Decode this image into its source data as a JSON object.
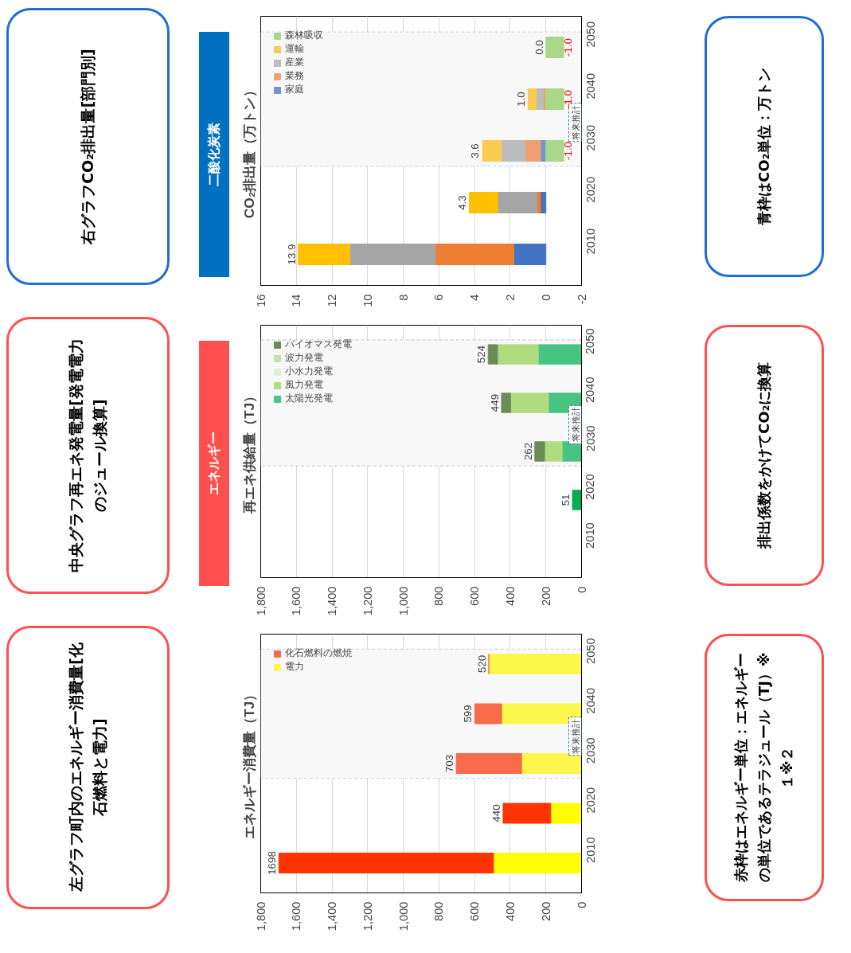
{
  "chart_data": [
    {
      "type": "bar",
      "title": "CO₂排出量（万トン）",
      "orientation": "horizontal",
      "stacked": true,
      "categories": [
        "2050",
        "2040",
        "2030",
        "2020",
        "2010"
      ],
      "series": [
        {
          "name": "家庭",
          "color": "#7094d4",
          "colors": [
            "#7094d4",
            "#7094d4",
            "#7094d4",
            "#4472c4",
            "#4472c4"
          ],
          "values": [
            null,
            null,
            0.3,
            0.3,
            1.8
          ]
        },
        {
          "name": "業務",
          "color": "#f0a070",
          "colors": [
            "#f0a070",
            "#f0a070",
            "#f0a070",
            "#ed7d31",
            "#ed7d31"
          ],
          "values": [
            null,
            0.15,
            0.85,
            0.2,
            4.4
          ]
        },
        {
          "name": "産業",
          "color": "#bcbcbc",
          "colors": [
            "#bcbcbc",
            "#bcbcbc",
            "#bcbcbc",
            "#a5a5a5",
            "#a5a5a5"
          ],
          "values": [
            null,
            0.4,
            1.35,
            2.2,
            4.8
          ]
        },
        {
          "name": "運輸",
          "color": "#f8cc50",
          "colors": [
            "#f8cc50",
            "#f8cc50",
            "#f8cc50",
            "#ffc000",
            "#ffc000"
          ],
          "values": [
            null,
            0.45,
            1.05,
            1.6,
            2.9
          ]
        },
        {
          "name": "森林吸収",
          "color": "#a9d88a",
          "values": [
            -1.0,
            -1.0,
            -1.0,
            null,
            null
          ],
          "value_labels": [
            "-1.0",
            "-1.0",
            "-1.0",
            null,
            null
          ]
        }
      ],
      "xlim": [
        16,
        -2
      ],
      "xticks": [
        16,
        14,
        12,
        10,
        8,
        6,
        4,
        2,
        0,
        -2
      ],
      "grid": "x",
      "legend": "top left",
      "bands": [
        {
          "axis": "y",
          "from": "2030",
          "to": "2050",
          "label": "将来推計",
          "color": "#f8f8f8"
        }
      ],
      "annotations": [
        "右グラフCO₂排出量[部門別]",
        "青枠はCO₂単位：万トン",
        "二酸化炭素",
        {
          "text": "0.0",
          "x": 0.0,
          "y": "2050"
        },
        {
          "text": "1.0",
          "x": 1.0,
          "y": "2040"
        },
        {
          "text": "3.6",
          "x": 3.6,
          "y": "2030"
        },
        {
          "text": "4.3",
          "x": 4.3,
          "y": "2020"
        },
        {
          "text": "13.9",
          "x": 13.9,
          "y": "2010"
        }
      ]
    },
    {
      "type": "bar",
      "title": "再エネ供給量（TJ）",
      "orientation": "horizontal",
      "stacked": true,
      "categories": [
        "2050",
        "2040",
        "2030",
        "2020",
        "2010"
      ],
      "series": [
        {
          "name": "太陽光発電",
          "color": "#48c482",
          "colors": [
            "#48c482",
            "#48c482",
            "#48c482",
            "#00b050",
            "#00b050"
          ],
          "values": [
            243,
            185,
            109,
            51,
            null
          ]
        },
        {
          "name": "風力発電",
          "color": "#b0dc80",
          "values": [
            228,
            212,
            98,
            null,
            null
          ]
        },
        {
          "name": "小水力発電",
          "color": "#e2efda",
          "values": [
            0,
            0,
            0,
            null,
            null
          ]
        },
        {
          "name": "波力発電",
          "color": "#c6e0b4",
          "values": [
            0,
            0,
            0,
            null,
            null
          ]
        },
        {
          "name": "バイオマス発電",
          "color": "#6b8c58",
          "values": [
            53,
            52,
            55,
            null,
            null
          ]
        }
      ],
      "totals": [
        "524",
        "449",
        "262",
        "51",
        null
      ],
      "xlim": [
        1800,
        0
      ],
      "xticks": [
        {
          "value": 1800,
          "label": "1,800"
        },
        {
          "value": 1600,
          "label": "1,600"
        },
        {
          "value": 1400,
          "label": "1,400"
        },
        {
          "value": 1200,
          "label": "1,200"
        },
        {
          "value": 1000,
          "label": "1,000"
        },
        800,
        600,
        400,
        200,
        0
      ],
      "grid": "x",
      "legend": "top left",
      "bands": [
        {
          "axis": "y",
          "from": "2030",
          "to": "2050",
          "label": "将来推計",
          "color": "#f8f8f8"
        }
      ],
      "annotations": [
        "中央グラフ再エネ発電量[発電電力のジュール換算]",
        "排出係数をかけてCO₂に換算",
        "エネルギー"
      ]
    },
    {
      "type": "bar",
      "title": "エネルギー消費量（TJ）",
      "orientation": "horizontal",
      "stacked": true,
      "categories": [
        "2050",
        "2040",
        "2030",
        "2020",
        "2010"
      ],
      "series": [
        {
          "name": "電力",
          "color": "#fbf84b",
          "colors": [
            "#fbf84b",
            "#fbf84b",
            "#fbf84b",
            "#ffff00",
            "#ffff00"
          ],
          "values": [
            520,
            448,
            336,
            173,
            494
          ]
        },
        {
          "name": "化石燃料の燃焼",
          "color": "#f96b4a",
          "colors": [
            "#f96b4a",
            "#f96b4a",
            "#f96b4a",
            "#ff3300",
            "#ff3300"
          ],
          "values": [
            0,
            151,
            367,
            267,
            1204
          ]
        }
      ],
      "totals": [
        "520",
        "599",
        "703",
        "440",
        "1698"
      ],
      "xlim": [
        1800,
        0
      ],
      "xticks": [
        {
          "value": 1800,
          "label": "1,800"
        },
        {
          "value": 1600,
          "label": "1,600"
        },
        {
          "value": 1400,
          "label": "1,400"
        },
        {
          "value": 1200,
          "label": "1,200"
        },
        {
          "value": 1000,
          "label": "1,000"
        },
        800,
        600,
        400,
        200,
        0
      ],
      "grid": "x",
      "legend": "top left",
      "bands": [
        {
          "axis": "y",
          "from": "2030",
          "to": "2050",
          "label": "将来推計",
          "color": "#f8f8f8"
        }
      ],
      "annotations": [
        "左グラフ町内のエネルギー消費量[化石燃料と電力]",
        "赤枠はエネルギー単位：エネルギーの単位であるテラジュール（TJ）※１※２"
      ]
    }
  ]
}
